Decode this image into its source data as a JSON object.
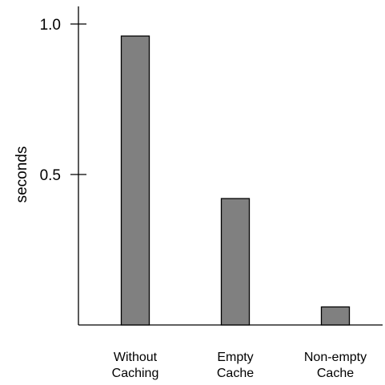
{
  "chart_data": {
    "type": "bar",
    "title": "",
    "xlabel": "",
    "ylabel": "seconds",
    "ylim": [
      0,
      1.1
    ],
    "yticks": [
      {
        "value": 0.5,
        "label": "0.5"
      },
      {
        "value": 1.0,
        "label": "1.0"
      }
    ],
    "categories": [
      [
        "Without",
        "Caching"
      ],
      [
        "Empty",
        "Cache"
      ],
      [
        "Non-empty",
        "Cache"
      ]
    ],
    "values": [
      0.96,
      0.42,
      0.06
    ],
    "grid": false,
    "legend": "none",
    "bar_color": "#808080",
    "edge_color": "#000000"
  }
}
